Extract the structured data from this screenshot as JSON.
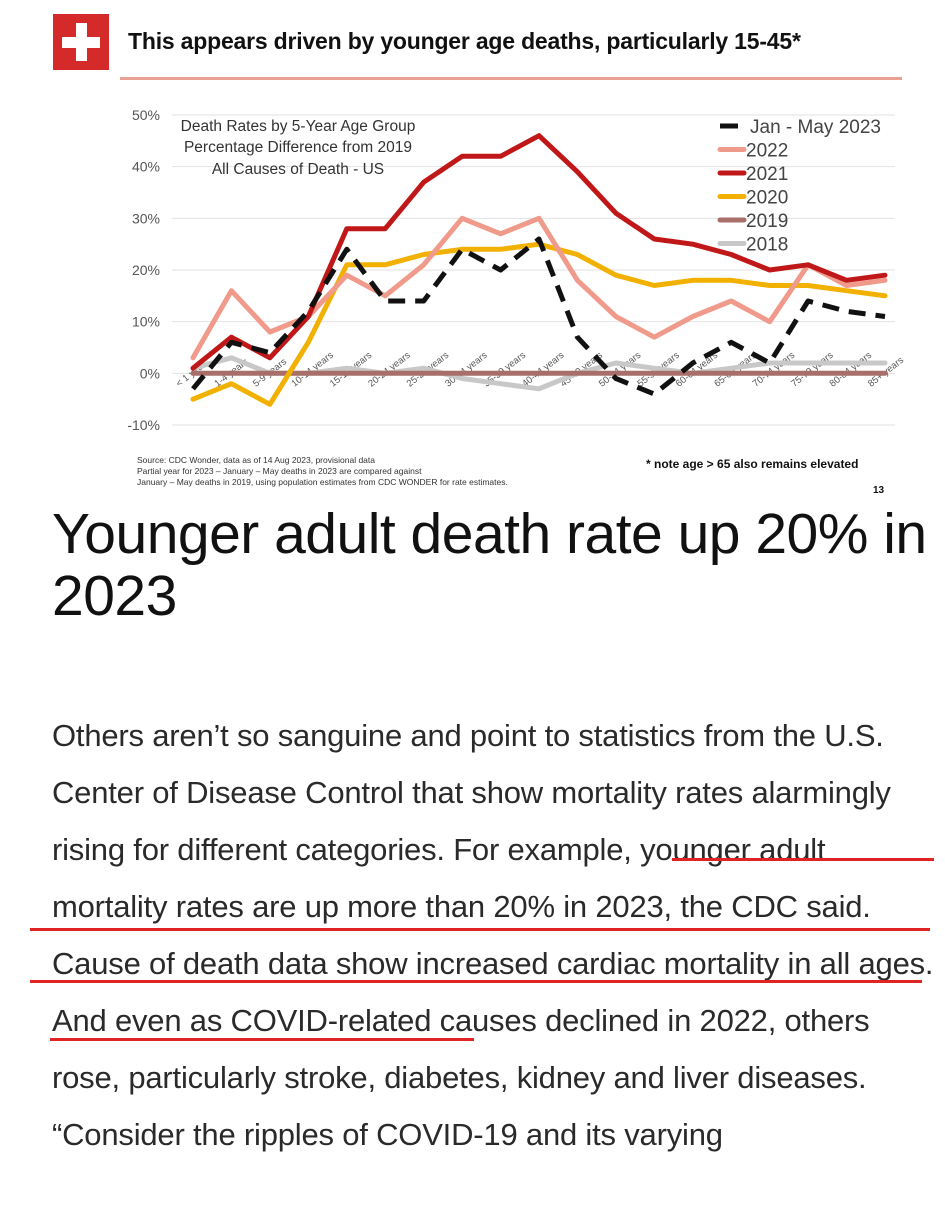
{
  "header": {
    "headline": "This appears driven by younger age deaths, particularly 15-45*"
  },
  "chart_data": {
    "type": "line",
    "title": "Death Rates by 5-Year Age Group",
    "subtitle_lines": [
      "Percentage Difference from 2019",
      "All Causes of Death - US"
    ],
    "ylim": [
      -10,
      50
    ],
    "yticks": [
      -10,
      0,
      10,
      20,
      30,
      40,
      50
    ],
    "ytick_labels": [
      "-10%",
      "0%",
      "10%",
      "20%",
      "30%",
      "40%",
      "50%"
    ],
    "grid": "horizontal",
    "legend_position": "top-right",
    "categories": [
      "< 1 year",
      "1-4 years",
      "5-9 years",
      "10-14 years",
      "15-19 years",
      "20-24 years",
      "25-29 years",
      "30-34 years",
      "35-39 years",
      "40-44 years",
      "45-49 years",
      "50-54 years",
      "55-59 years",
      "60-64 years",
      "65-69 years",
      "70-74 years",
      "75-79 years",
      "80-84 years",
      "85+ years"
    ],
    "series": [
      {
        "name": "Jan - May 2023",
        "color": "#111111",
        "dash": true,
        "values": [
          -3,
          6,
          4,
          12,
          24,
          14,
          14,
          24,
          20,
          26,
          7,
          -1,
          -4,
          2,
          6,
          2,
          14,
          12,
          11
        ]
      },
      {
        "name": "2022",
        "color": "#ef9a8a",
        "dash": false,
        "values": [
          3,
          16,
          8,
          11,
          19,
          15,
          21,
          30,
          27,
          30,
          18,
          11,
          7,
          11,
          14,
          10,
          21,
          17,
          18
        ]
      },
      {
        "name": "2021",
        "color": "#c01818",
        "dash": false,
        "values": [
          1,
          7,
          3,
          11,
          28,
          28,
          37,
          42,
          42,
          46,
          39,
          31,
          26,
          25,
          23,
          20,
          21,
          18,
          19
        ]
      },
      {
        "name": "2020",
        "color": "#f2b100",
        "dash": false,
        "values": [
          -5,
          -2,
          -6,
          6,
          21,
          21,
          23,
          24,
          24,
          25,
          23,
          19,
          17,
          18,
          18,
          17,
          17,
          16,
          15
        ]
      },
      {
        "name": "2019",
        "color": "#a86f6a",
        "dash": false,
        "values": [
          0,
          0,
          0,
          0,
          0,
          0,
          0,
          0,
          0,
          0,
          0,
          0,
          0,
          0,
          0,
          0,
          0,
          0,
          0
        ]
      },
      {
        "name": "2018",
        "color": "#c8c8c8",
        "dash": false,
        "values": [
          1,
          3,
          0,
          0,
          1,
          0,
          1,
          -1,
          -2,
          -3,
          0,
          2,
          1,
          0,
          1,
          2,
          2,
          2,
          2
        ]
      }
    ],
    "source_lines": [
      "Source: CDC Wonder, data as of 14 Aug 2023, provisional data",
      "Partial year for 2023 – January – May deaths in 2023 are compared against",
      "January – May deaths in 2019, using population estimates from CDC WONDER for rate estimates."
    ],
    "note": "* note age > 65 also remains elevated",
    "page_number": "13"
  },
  "article": {
    "title": "Younger adult death rate up 20% in 2023",
    "paragraph_1": "Others aren’t so sanguine and point to statistics from the U.S. Center of Disease Control that show mortality rates alarmingly rising for different categories. For example, younger adult mortality rates are up more than 20% in 2023, the CDC said. Cause of death data show increased cardiac mortality in all ages. And even as COVID-related causes declined in 2022, others rose, particularly stroke, diabetes, kidney and liver diseases.",
    "paragraph_2": "“Consider the ripples of COVID-19 and its varying"
  },
  "colors": {
    "flag_red": "#d42a2a",
    "headline_rule": "#e8a094",
    "highlight_underline": "#e02424"
  }
}
